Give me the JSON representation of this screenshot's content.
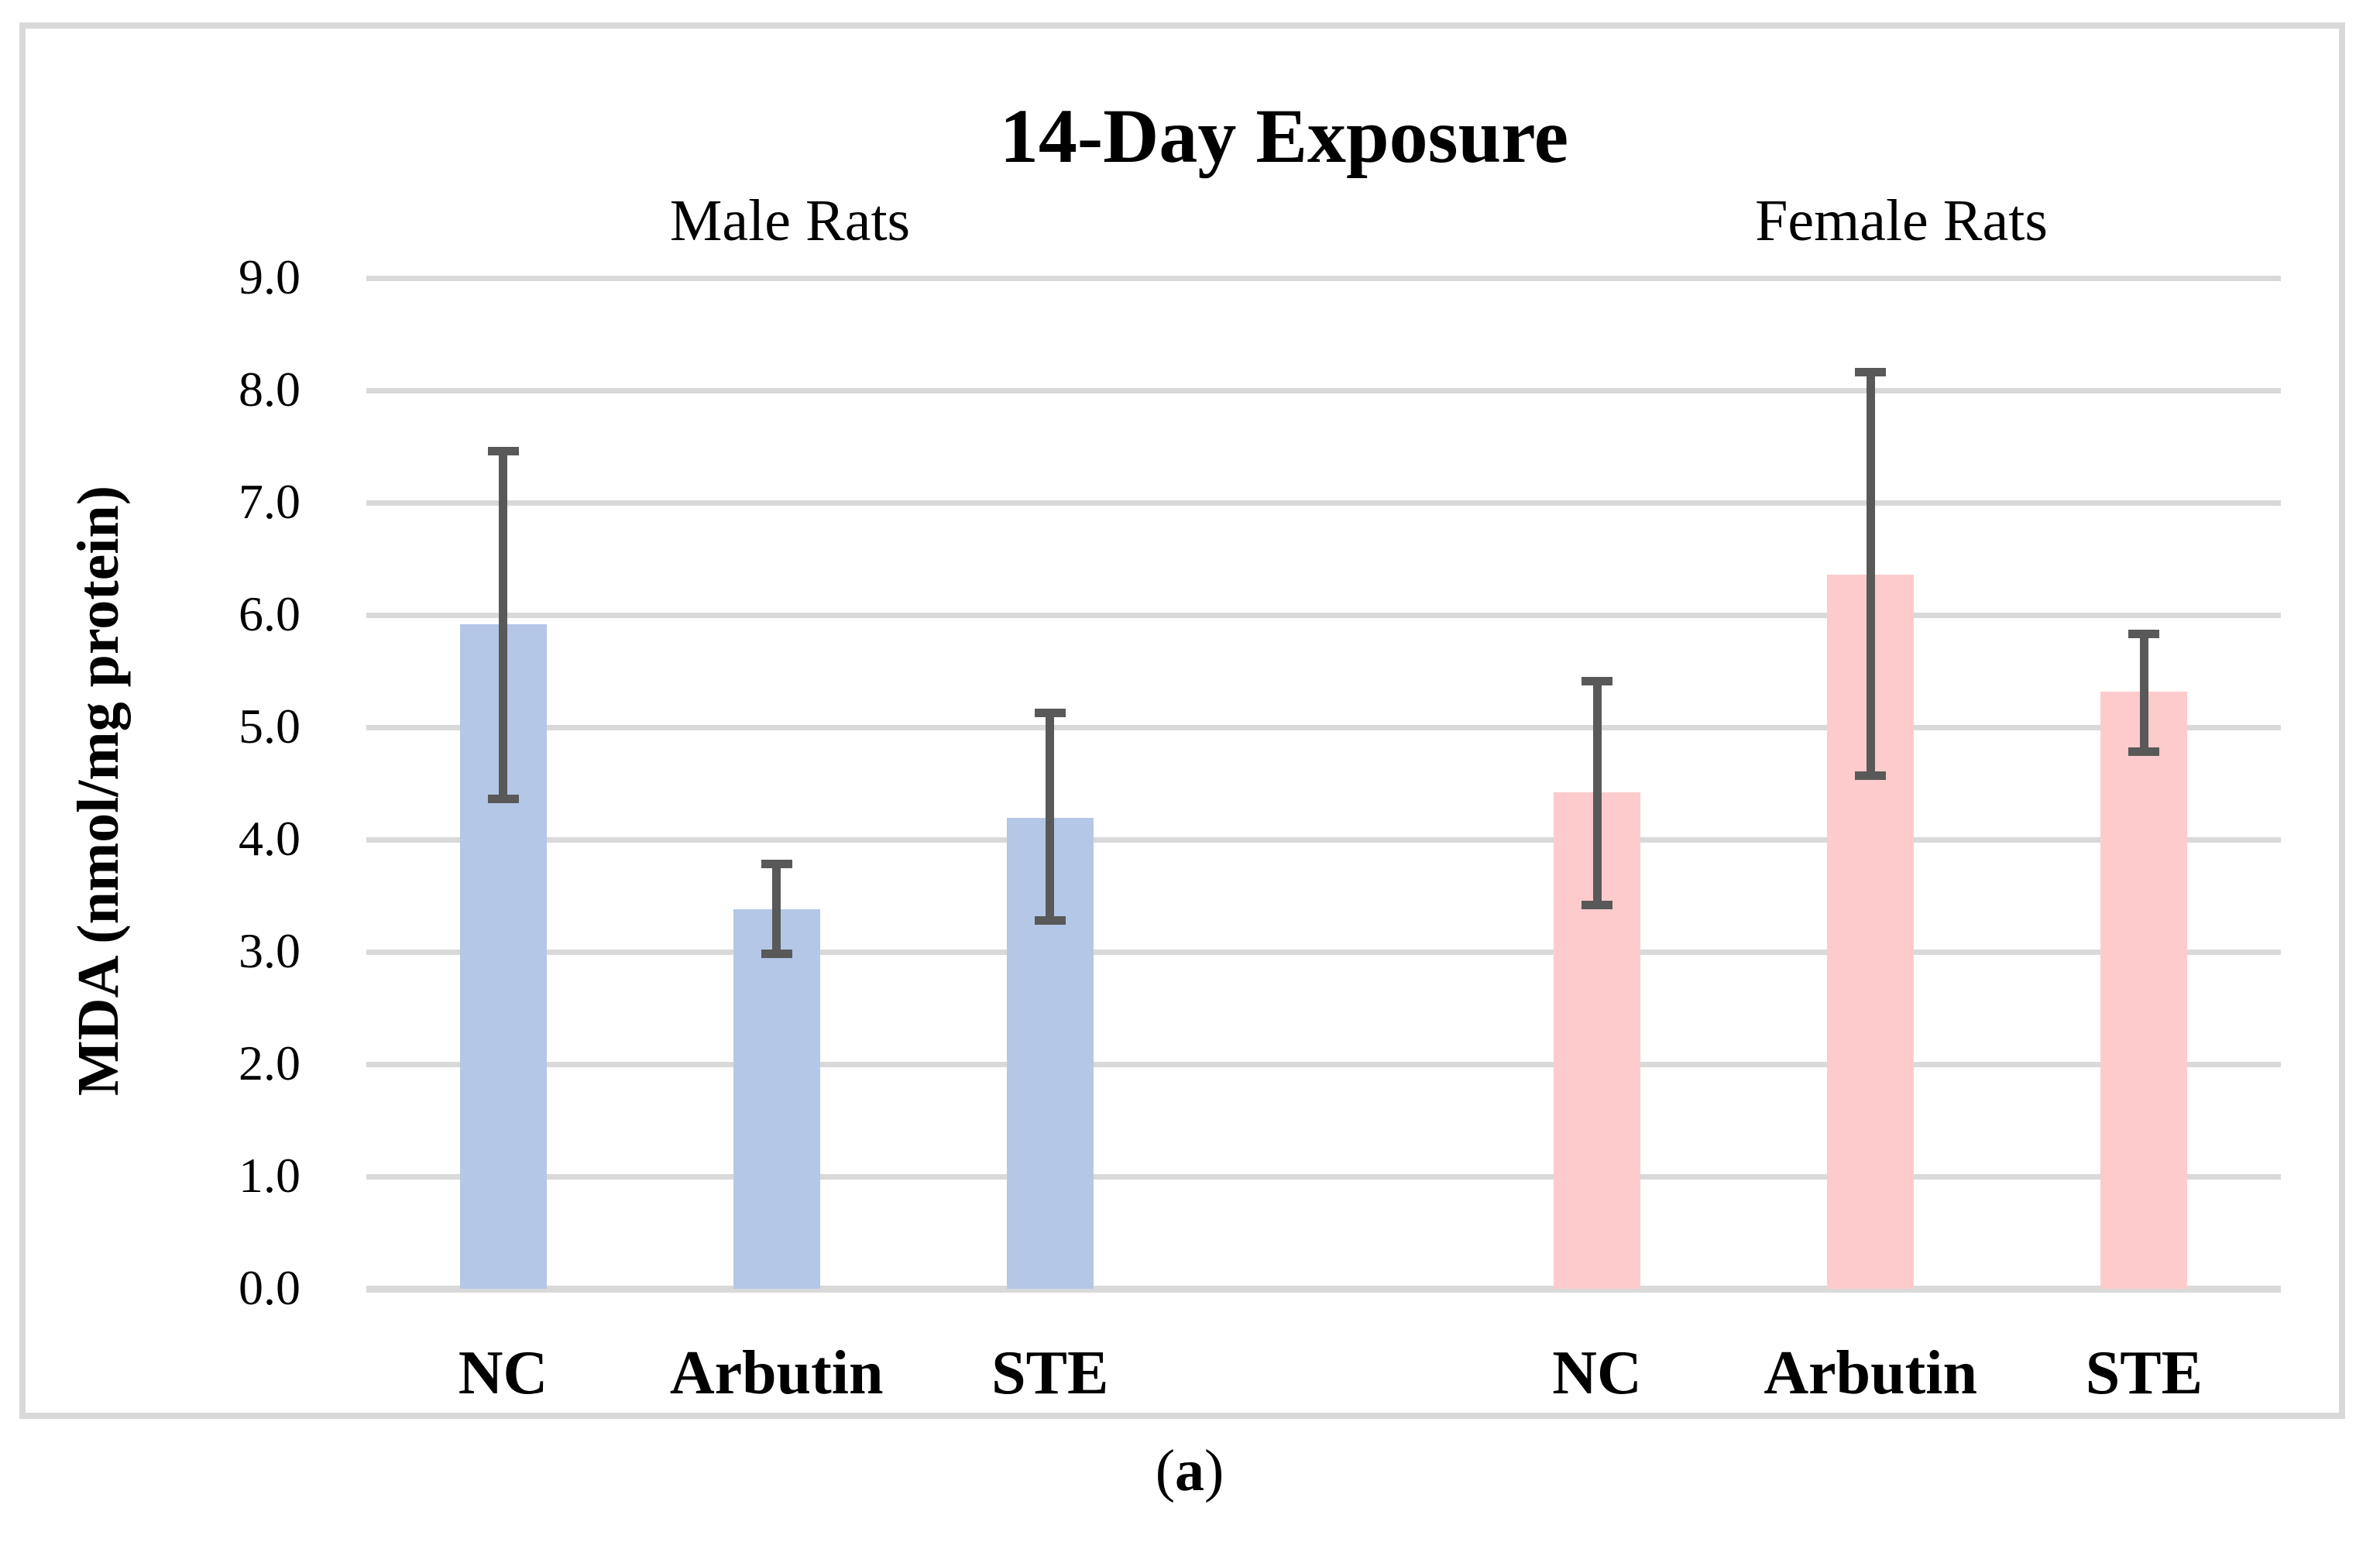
{
  "figure": {
    "title": "14-Day Exposure",
    "subtitle_male": "Male Rats",
    "subtitle_female": "Female Rats",
    "y_axis_title": "MDA (nmol/mg protein)",
    "caption": {
      "open": "(",
      "letter": "a",
      "close": ")"
    }
  },
  "chart_data": {
    "type": "bar",
    "title": "14-Day Exposure",
    "xlabel": "",
    "ylabel": "MDA (nmol/mg protein)",
    "ylim": [
      0,
      9
    ],
    "ytick_step": 1.0,
    "ytick_labels": [
      "0.0",
      "1.0",
      "2.0",
      "3.0",
      "4.0",
      "5.0",
      "6.0",
      "7.0",
      "8.0",
      "9.0"
    ],
    "grid": true,
    "legend": "none",
    "categories": [
      "NC",
      "Arbutin",
      "STE"
    ],
    "series": [
      {
        "name": "Male Rats",
        "color": "#b4c7e7",
        "values": [
          5.92,
          3.38,
          4.19
        ],
        "error_low": [
          4.36,
          2.98,
          3.28
        ],
        "error_high": [
          7.46,
          3.78,
          5.13
        ]
      },
      {
        "name": "Female Rats",
        "color": "#fdcbcb",
        "values": [
          4.42,
          6.36,
          5.32
        ],
        "error_low": [
          3.42,
          4.57,
          4.78
        ],
        "error_high": [
          5.41,
          8.16,
          5.83
        ]
      }
    ],
    "error_bar_color": "#595959",
    "gridline_color": "#d9d9d9",
    "frame_color": "#d9d9d9"
  }
}
